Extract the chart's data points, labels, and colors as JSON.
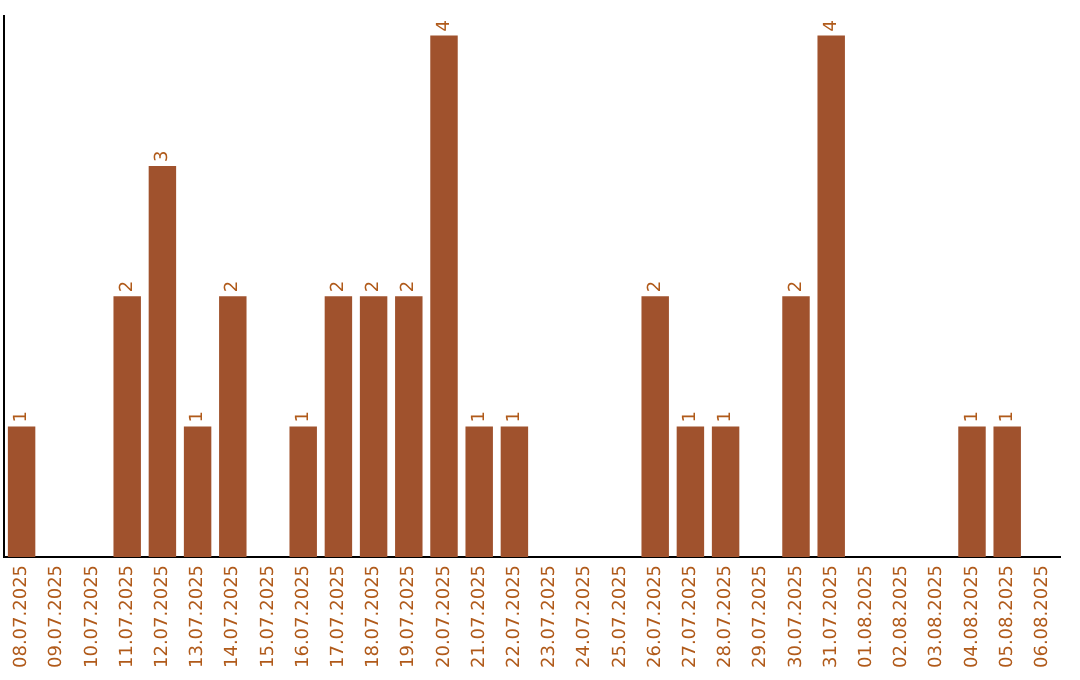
{
  "chart_data": {
    "type": "bar",
    "categories": [
      "08.07.2025",
      "09.07.2025",
      "10.07.2025",
      "11.07.2025",
      "12.07.2025",
      "13.07.2025",
      "14.07.2025",
      "15.07.2025",
      "16.07.2025",
      "17.07.2025",
      "18.07.2025",
      "19.07.2025",
      "20.07.2025",
      "21.07.2025",
      "22.07.2025",
      "23.07.2025",
      "24.07.2025",
      "25.07.2025",
      "26.07.2025",
      "27.07.2025",
      "28.07.2025",
      "29.07.2025",
      "30.07.2025",
      "31.07.2025",
      "01.08.2025",
      "02.08.2025",
      "03.08.2025",
      "04.08.2025",
      "05.08.2025",
      "06.08.2025"
    ],
    "values": [
      1,
      0,
      0,
      2,
      3,
      1,
      2,
      0,
      1,
      2,
      2,
      2,
      4,
      1,
      1,
      0,
      0,
      0,
      2,
      1,
      1,
      0,
      2,
      4,
      0,
      0,
      0,
      1,
      1,
      0
    ],
    "value_labels": [
      "1",
      null,
      null,
      "2",
      "3",
      "1",
      "2",
      null,
      "1",
      "2",
      "2",
      "2",
      "4",
      "1",
      "1",
      null,
      null,
      null,
      "2",
      "1",
      "1",
      null,
      "2",
      "4",
      null,
      null,
      null,
      "1",
      "1",
      null
    ],
    "color": "#a0522d",
    "ylim": [
      0,
      4.15
    ],
    "tick_labels": "x",
    "grid": false,
    "legend": false
  }
}
